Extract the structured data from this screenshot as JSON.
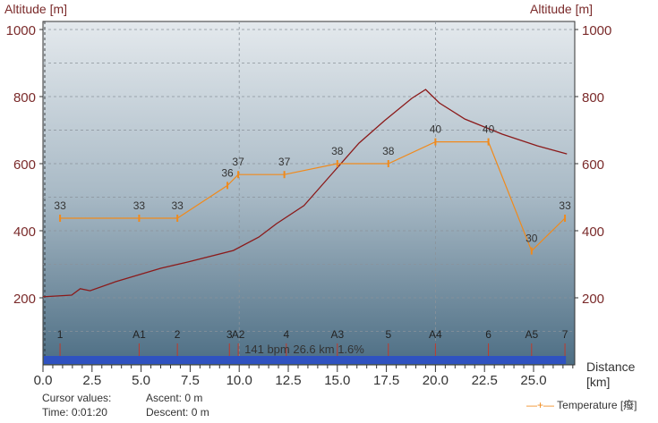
{
  "chart_data": {
    "type": "line",
    "ylabel_left": "Altitude [m]",
    "ylabel_right": "Altitude [m]",
    "xlabel": "Distance [km]",
    "xlim": [
      0,
      27.1
    ],
    "ylim": [
      0,
      1000
    ],
    "xticks": [
      "0.0",
      "2.5",
      "5.0",
      "7.5",
      "10.0",
      "12.5",
      "15.0",
      "17.5",
      "20.0",
      "22.5",
      "25.0"
    ],
    "yticks": [
      "200",
      "400",
      "600",
      "800",
      "1000"
    ],
    "grid": true,
    "series": [
      {
        "kind": "altitude",
        "color": "#8b1a1a",
        "points": [
          [
            0,
            203
          ],
          [
            1.46,
            208
          ],
          [
            1.9,
            227
          ],
          [
            2.4,
            221
          ],
          [
            3.7,
            248
          ],
          [
            6.0,
            288
          ],
          [
            7.4,
            307
          ],
          [
            9.7,
            341
          ],
          [
            11.0,
            381
          ],
          [
            11.9,
            421
          ],
          [
            13.3,
            475
          ],
          [
            14.7,
            568
          ],
          [
            16.1,
            661
          ],
          [
            17.4,
            728
          ],
          [
            18.8,
            795
          ],
          [
            19.5,
            821
          ],
          [
            20.2,
            781
          ],
          [
            21.5,
            733
          ],
          [
            23.4,
            688
          ],
          [
            25.2,
            653
          ],
          [
            26.7,
            629
          ]
        ]
      },
      {
        "name": "Temperature [癈]",
        "color": "#f08a1c",
        "points": [
          [
            0.87,
            33
          ],
          [
            4.9,
            33
          ],
          [
            6.85,
            33
          ],
          [
            9.4,
            36
          ],
          [
            9.95,
            37
          ],
          [
            12.3,
            37
          ],
          [
            15.0,
            38
          ],
          [
            17.6,
            38
          ],
          [
            20.0,
            40
          ],
          [
            22.7,
            40
          ],
          [
            24.9,
            30
          ],
          [
            26.6,
            33
          ]
        ]
      }
    ],
    "markers": [
      {
        "label": "1",
        "x": 0.87
      },
      {
        "label": "A1",
        "x": 4.9
      },
      {
        "label": "2",
        "x": 6.85
      },
      {
        "label": "3",
        "x": 9.5
      },
      {
        "label": "A2",
        "x": 9.95
      },
      {
        "label": "4",
        "x": 12.4
      },
      {
        "label": "A3",
        "x": 15.0
      },
      {
        "label": "5",
        "x": 17.6
      },
      {
        "label": "A4",
        "x": 20.0
      },
      {
        "label": "6",
        "x": 22.7
      },
      {
        "label": "A5",
        "x": 24.9
      },
      {
        "label": "7",
        "x": 26.6
      }
    ],
    "summary": "141 bpm 26.6 km 1.6%",
    "legend_position": "bottom-right"
  },
  "footer": {
    "cursor": "Cursor values:",
    "time": "Time: 0:01:20",
    "ascent": "Ascent: 0 m",
    "descent": "Descent: 0 m"
  }
}
